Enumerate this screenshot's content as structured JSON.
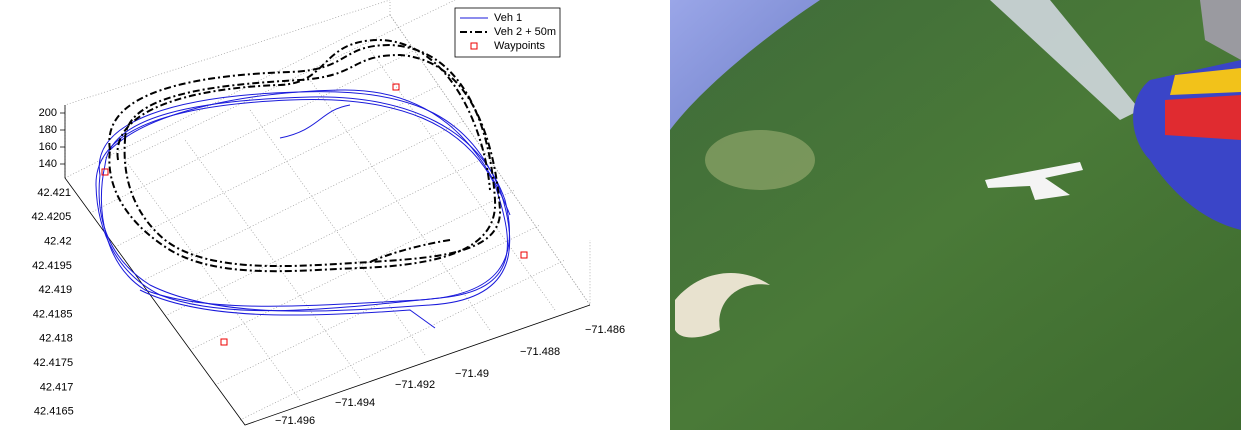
{
  "figure": {
    "legend": [
      "Veh 1",
      "Veh 2 + 50m",
      "Waypoints"
    ],
    "z_ticks": [
      "200",
      "180",
      "160",
      "140"
    ],
    "lat_ticks": [
      "42.421",
      "42.4205",
      "42.42",
      "42.4195",
      "42.419",
      "42.4185",
      "42.418",
      "42.4175",
      "42.417",
      "42.4165"
    ],
    "lon_ticks": [
      "−71.486",
      "−71.488",
      "−71.49",
      "−71.492",
      "−71.494",
      "−71.496"
    ]
  }
}
